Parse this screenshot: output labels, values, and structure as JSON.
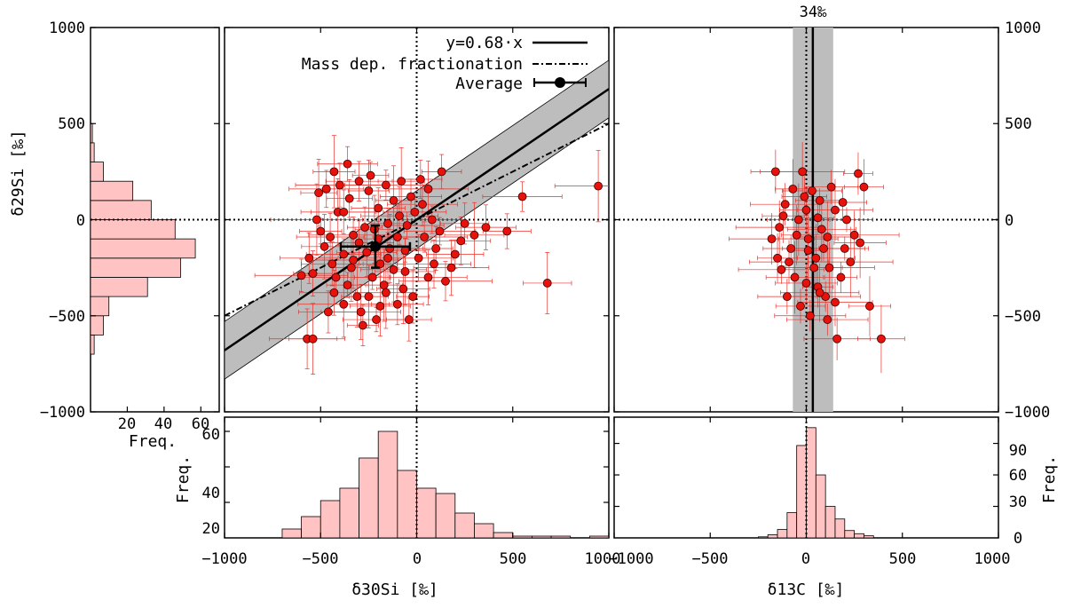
{
  "chart_data": {
    "type": "scatter",
    "panels": {
      "main": {
        "xlabel": "δ30Si [‰]",
        "ylabel": "δ29Si [‰]",
        "xlim": [
          -1000,
          1000
        ],
        "ylim": [
          -1000,
          1000
        ],
        "xticks": [
          "−1000",
          "−500",
          "0",
          "500",
          "1000"
        ],
        "yticks": [
          "1000",
          "500",
          "0",
          "−500",
          "−1000"
        ],
        "fit_slope": 0.68,
        "fit_band_offset": 150,
        "mass_dep_slope": 0.5,
        "average": {
          "x": -215,
          "y": -140,
          "xerr": 180,
          "yerr": 110
        },
        "points": [
          {
            "x": -150,
            "y": -200
          },
          {
            "x": -200,
            "y": -100
          },
          {
            "x": -260,
            "y": -170
          },
          {
            "x": -340,
            "y": -250
          },
          {
            "x": -300,
            "y": -120
          },
          {
            "x": -100,
            "y": -90
          },
          {
            "x": -50,
            "y": -30
          },
          {
            "x": -420,
            "y": -300
          },
          {
            "x": -380,
            "y": -180
          },
          {
            "x": -450,
            "y": -90
          },
          {
            "x": -500,
            "y": -60
          },
          {
            "x": -520,
            "y": 0
          },
          {
            "x": -540,
            "y": -280
          },
          {
            "x": -600,
            "y": -290
          },
          {
            "x": -560,
            "y": -200
          },
          {
            "x": -470,
            "y": 160
          },
          {
            "x": -430,
            "y": 250
          },
          {
            "x": -360,
            "y": 290
          },
          {
            "x": -300,
            "y": 200
          },
          {
            "x": -250,
            "y": 150
          },
          {
            "x": -200,
            "y": 60
          },
          {
            "x": -120,
            "y": 100
          },
          {
            "x": -80,
            "y": 200
          },
          {
            "x": -30,
            "y": 120
          },
          {
            "x": 30,
            "y": 80
          },
          {
            "x": 60,
            "y": 160
          },
          {
            "x": 130,
            "y": 250
          },
          {
            "x": 80,
            "y": 0
          },
          {
            "x": 100,
            "y": -150
          },
          {
            "x": 180,
            "y": -250
          },
          {
            "x": 150,
            "y": -320
          },
          {
            "x": 230,
            "y": -110
          },
          {
            "x": 300,
            "y": -80
          },
          {
            "x": 360,
            "y": -40
          },
          {
            "x": 470,
            "y": -60
          },
          {
            "x": 550,
            "y": 120
          },
          {
            "x": 680,
            "y": -330
          },
          {
            "x": 945,
            "y": 175
          },
          {
            "x": -380,
            "y": -440
          },
          {
            "x": -290,
            "y": -480
          },
          {
            "x": -210,
            "y": -520
          },
          {
            "x": -100,
            "y": -440
          },
          {
            "x": -40,
            "y": -520
          },
          {
            "x": -570,
            "y": -620
          },
          {
            "x": -540,
            "y": -620
          },
          {
            "x": -280,
            "y": -550
          },
          {
            "x": -430,
            "y": -380
          },
          {
            "x": -170,
            "y": -340
          },
          {
            "x": -60,
            "y": -270
          },
          {
            "x": 10,
            "y": -200
          },
          {
            "x": -250,
            "y": -400
          },
          {
            "x": -330,
            "y": -80
          },
          {
            "x": -150,
            "y": -20
          },
          {
            "x": -90,
            "y": 20
          },
          {
            "x": -410,
            "y": 40
          },
          {
            "x": -480,
            "y": -140
          },
          {
            "x": -360,
            "y": -340
          },
          {
            "x": -230,
            "y": -300
          },
          {
            "x": -120,
            "y": -260
          },
          {
            "x": 40,
            "y": -90
          },
          {
            "x": -10,
            "y": 40
          },
          {
            "x": -190,
            "y": -230
          },
          {
            "x": -270,
            "y": -40
          },
          {
            "x": -350,
            "y": 110
          },
          {
            "x": -160,
            "y": 180
          },
          {
            "x": -60,
            "y": -160
          },
          {
            "x": 120,
            "y": -60
          },
          {
            "x": 200,
            "y": -180
          },
          {
            "x": -440,
            "y": -230
          },
          {
            "x": -310,
            "y": -400
          },
          {
            "x": -190,
            "y": -450
          },
          {
            "x": -70,
            "y": -360
          },
          {
            "x": 60,
            "y": -300
          },
          {
            "x": 250,
            "y": -20
          },
          {
            "x": -510,
            "y": 140
          },
          {
            "x": -240,
            "y": 230
          },
          {
            "x": 20,
            "y": 210
          },
          {
            "x": -20,
            "y": -400
          },
          {
            "x": -460,
            "y": -480
          },
          {
            "x": -140,
            "y": -150
          },
          {
            "x": -380,
            "y": 40
          },
          {
            "x": -220,
            "y": -50
          },
          {
            "x": 90,
            "y": -230
          },
          {
            "x": -330,
            "y": -210
          },
          {
            "x": -160,
            "y": -380
          },
          {
            "x": -400,
            "y": 180
          }
        ]
      },
      "right": {
        "xlabel": "δ13C [‰]",
        "xlim": [
          -1000,
          1000
        ],
        "xticks": [
          "−1000",
          "−500",
          "0",
          "500",
          "1000"
        ],
        "yticks": [
          "1000",
          "500",
          "0",
          "−500",
          "−1000"
        ],
        "median_label": "34‰",
        "median": 34,
        "band": [
          -70,
          140
        ],
        "points": [
          {
            "x": 10,
            "y": -100
          },
          {
            "x": 50,
            "y": -200
          },
          {
            "x": -40,
            "y": 0
          },
          {
            "x": 80,
            "y": -50
          },
          {
            "x": -80,
            "y": -150
          },
          {
            "x": 120,
            "y": -250
          },
          {
            "x": -110,
            "y": 80
          },
          {
            "x": 150,
            "y": 50
          },
          {
            "x": 30,
            "y": 150
          },
          {
            "x": -20,
            "y": 250
          },
          {
            "x": 60,
            "y": -350
          },
          {
            "x": -60,
            "y": -300
          },
          {
            "x": 100,
            "y": -400
          },
          {
            "x": 20,
            "y": -500
          },
          {
            "x": -150,
            "y": -200
          },
          {
            "x": 200,
            "y": -150
          },
          {
            "x": 250,
            "y": -80
          },
          {
            "x": 270,
            "y": 240
          },
          {
            "x": 300,
            "y": 170
          },
          {
            "x": 330,
            "y": -450
          },
          {
            "x": 390,
            "y": -620
          },
          {
            "x": 160,
            "y": -620
          },
          {
            "x": 110,
            "y": -520
          },
          {
            "x": -160,
            "y": 250
          },
          {
            "x": -180,
            "y": -100
          },
          {
            "x": 180,
            "y": -300
          },
          {
            "x": -100,
            "y": -400
          },
          {
            "x": 0,
            "y": 50
          },
          {
            "x": 70,
            "y": 100
          },
          {
            "x": -50,
            "y": -80
          },
          {
            "x": 40,
            "y": -250
          },
          {
            "x": -130,
            "y": -260
          },
          {
            "x": 130,
            "y": 170
          },
          {
            "x": 210,
            "y": 0
          },
          {
            "x": -70,
            "y": 160
          },
          {
            "x": 90,
            "y": -150
          },
          {
            "x": 0,
            "y": -330
          },
          {
            "x": -30,
            "y": -450
          },
          {
            "x": 150,
            "y": -430
          },
          {
            "x": -120,
            "y": 20
          },
          {
            "x": 230,
            "y": -220
          },
          {
            "x": 280,
            "y": -120
          },
          {
            "x": -90,
            "y": -220
          },
          {
            "x": 60,
            "y": 10
          },
          {
            "x": 10,
            "y": -160
          },
          {
            "x": 110,
            "y": -90
          },
          {
            "x": -10,
            "y": 120
          },
          {
            "x": 190,
            "y": 90
          },
          {
            "x": -140,
            "y": -40
          },
          {
            "x": 70,
            "y": -380
          }
        ]
      },
      "left_hist": {
        "xlabel": "Freq.",
        "xlim": [
          0,
          70
        ],
        "xticks": [
          "20",
          "40",
          "60"
        ],
        "bin_width": 100,
        "bins": [
          {
            "from": -700,
            "count": 2
          },
          {
            "from": -600,
            "count": 7
          },
          {
            "from": -500,
            "count": 10
          },
          {
            "from": -400,
            "count": 31
          },
          {
            "from": -300,
            "count": 49
          },
          {
            "from": -200,
            "count": 57
          },
          {
            "from": -100,
            "count": 46
          },
          {
            "from": 0,
            "count": 33
          },
          {
            "from": 100,
            "count": 23
          },
          {
            "from": 200,
            "count": 7
          },
          {
            "from": 300,
            "count": 2
          },
          {
            "from": 400,
            "count": 1
          }
        ]
      },
      "bottom_left_hist": {
        "ylabel": "Freq.",
        "ylim": [
          0,
          68
        ],
        "yticks": [
          "20",
          "40",
          "60"
        ],
        "bin_width": 100,
        "bins": [
          {
            "from": -700,
            "count": 5
          },
          {
            "from": -600,
            "count": 12
          },
          {
            "from": -500,
            "count": 21
          },
          {
            "from": -400,
            "count": 28
          },
          {
            "from": -300,
            "count": 45
          },
          {
            "from": -200,
            "count": 60
          },
          {
            "from": -100,
            "count": 38
          },
          {
            "from": 0,
            "count": 28
          },
          {
            "from": 100,
            "count": 25
          },
          {
            "from": 200,
            "count": 14
          },
          {
            "from": 300,
            "count": 8
          },
          {
            "from": 400,
            "count": 3
          },
          {
            "from": 500,
            "count": 1
          },
          {
            "from": 600,
            "count": 1
          },
          {
            "from": 700,
            "count": 1
          },
          {
            "from": 900,
            "count": 1
          }
        ]
      },
      "bottom_right_hist": {
        "ylabel": "Freq.",
        "ylim": [
          0,
          115
        ],
        "yticks": [
          "0",
          "30",
          "60",
          "90"
        ],
        "bin_width": 50,
        "bins": [
          {
            "from": -300,
            "count": 0
          },
          {
            "from": -250,
            "count": 1
          },
          {
            "from": -200,
            "count": 3
          },
          {
            "from": -150,
            "count": 8
          },
          {
            "from": -100,
            "count": 24
          },
          {
            "from": -50,
            "count": 88
          },
          {
            "from": 0,
            "count": 105
          },
          {
            "from": 50,
            "count": 60
          },
          {
            "from": 100,
            "count": 30
          },
          {
            "from": 150,
            "count": 18
          },
          {
            "from": 200,
            "count": 7
          },
          {
            "from": 250,
            "count": 4
          },
          {
            "from": 300,
            "count": 2
          }
        ]
      }
    },
    "legend": {
      "fit_label": "y=0.68·x",
      "mass_label": "Mass dep. fractionation",
      "avg_label": "Average"
    },
    "colors": {
      "point_fill": "#e8120c",
      "error_bar": "#e8322b",
      "hist_fill": "#ffc3c3",
      "band_fill": "#bdbdbd"
    }
  }
}
